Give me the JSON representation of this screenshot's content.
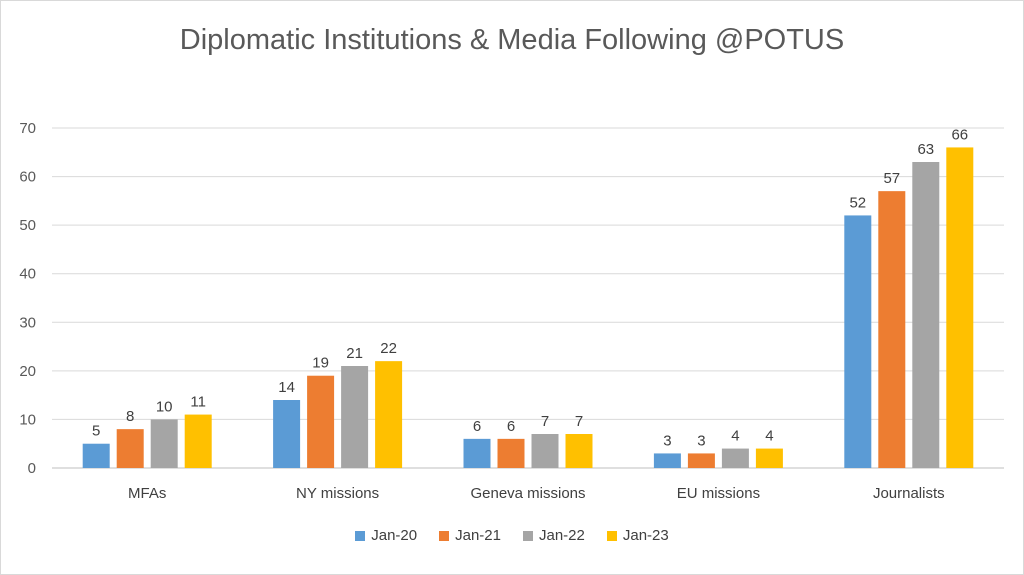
{
  "chart_data": {
    "type": "bar",
    "title": "Diplomatic Institutions & Media Following @POTUS",
    "categories": [
      "MFAs",
      "NY missions",
      "Geneva missions",
      "EU missions",
      "Journalists"
    ],
    "series": [
      {
        "name": "Jan-20",
        "color": "#5b9bd5",
        "values": [
          5,
          14,
          6,
          3,
          52
        ]
      },
      {
        "name": "Jan-21",
        "color": "#ed7d31",
        "values": [
          8,
          19,
          6,
          3,
          57
        ]
      },
      {
        "name": "Jan-22",
        "color": "#a5a5a5",
        "values": [
          10,
          21,
          7,
          4,
          63
        ]
      },
      {
        "name": "Jan-23",
        "color": "#ffc000",
        "values": [
          11,
          22,
          7,
          4,
          66
        ]
      }
    ],
    "ylim": [
      0,
      70
    ],
    "yticks": [
      0,
      10,
      20,
      30,
      40,
      50,
      60,
      70
    ],
    "grid": true,
    "legend": "bottom"
  }
}
